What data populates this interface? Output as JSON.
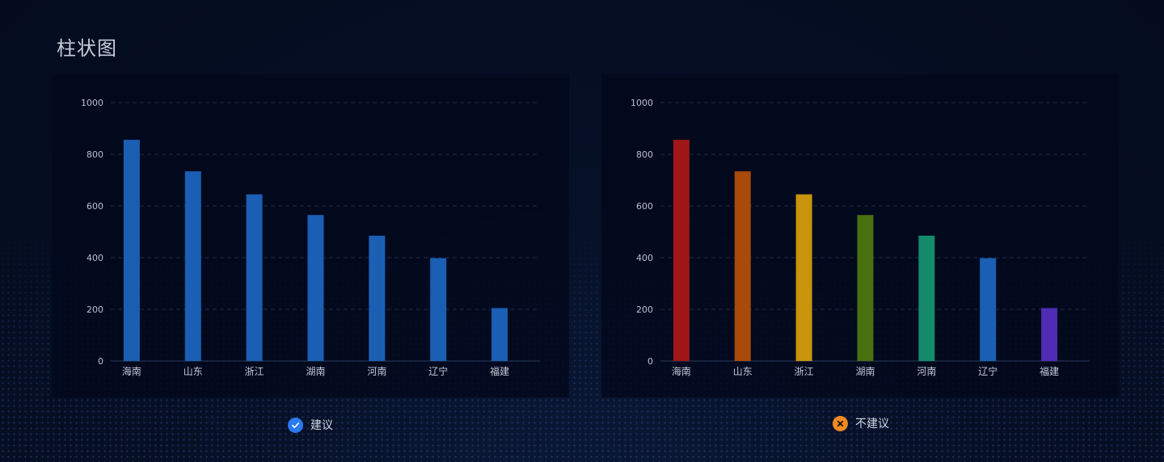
{
  "page": {
    "title": "柱状图"
  },
  "captions": {
    "left": {
      "label": "建议",
      "icon": "check-circle-icon",
      "color": "#2a7af0"
    },
    "right": {
      "label": "不建议",
      "icon": "close-circle-icon",
      "color": "#f08a24"
    }
  },
  "chart_data": [
    {
      "type": "bar",
      "title": "",
      "xlabel": "",
      "ylabel": "",
      "categories": [
        "海南",
        "山东",
        "浙江",
        "湖南",
        "河南",
        "辽宁",
        "福建"
      ],
      "values": [
        856,
        734,
        645,
        565,
        485,
        398,
        205
      ],
      "ylim": [
        0,
        1000
      ],
      "yticks": [
        0,
        200,
        400,
        600,
        800,
        1000
      ],
      "grid": true,
      "bar_colors": [
        "#1a5fb4",
        "#1a5fb4",
        "#1a5fb4",
        "#1a5fb4",
        "#1a5fb4",
        "#1a5fb4",
        "#1a5fb4"
      ]
    },
    {
      "type": "bar",
      "title": "",
      "xlabel": "",
      "ylabel": "",
      "categories": [
        "海南",
        "山东",
        "浙江",
        "湖南",
        "河南",
        "辽宁",
        "福建"
      ],
      "values": [
        856,
        734,
        645,
        565,
        485,
        398,
        205
      ],
      "ylim": [
        0,
        1000
      ],
      "yticks": [
        0,
        200,
        400,
        600,
        800,
        1000
      ],
      "grid": true,
      "bar_colors": [
        "#a11616",
        "#a84a0a",
        "#c8940c",
        "#47700f",
        "#148a6a",
        "#1a5fb4",
        "#4e2cb5"
      ]
    }
  ]
}
